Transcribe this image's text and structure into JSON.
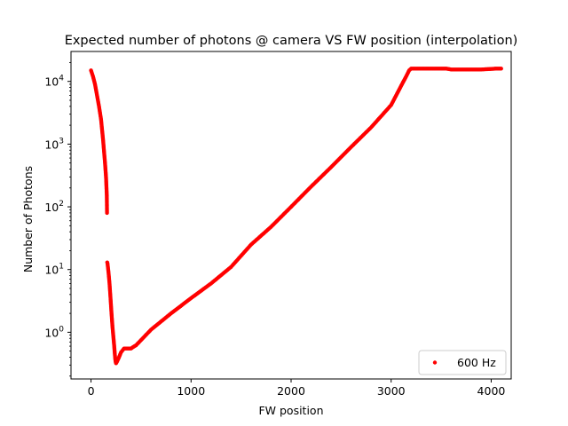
{
  "chart_data": {
    "type": "scatter",
    "title": "Expected number of photons @ camera VS FW position (interpolation)",
    "xlabel": "FW position",
    "ylabel": "Number of Photons",
    "xlim": [
      -200,
      4200
    ],
    "ylim": [
      0.18,
      30000
    ],
    "yscale": "log",
    "x_ticks": [
      0,
      1000,
      2000,
      3000,
      4000
    ],
    "x_tick_labels": [
      "0",
      "1000",
      "2000",
      "3000",
      "4000"
    ],
    "y_ticks": [
      1,
      10,
      100,
      1000,
      10000
    ],
    "y_tick_labels": [
      {
        "base": "10",
        "exp": "0"
      },
      {
        "base": "10",
        "exp": "1"
      },
      {
        "base": "10",
        "exp": "2"
      },
      {
        "base": "10",
        "exp": "3"
      },
      {
        "base": "10",
        "exp": "4"
      }
    ],
    "grid": false,
    "legend": {
      "position": "bottom-right"
    },
    "series": [
      {
        "name": "600 Hz",
        "color": "#ff0000",
        "x": [
          0,
          20,
          40,
          60,
          80,
          100,
          120,
          140,
          150,
          158,
          160,
          162,
          165,
          175,
          185,
          195,
          205,
          215,
          225,
          232,
          238,
          242,
          246,
          250,
          260,
          280,
          300,
          330,
          350,
          380,
          400,
          420,
          450,
          500,
          600,
          800,
          1000,
          1200,
          1400,
          1600,
          1800,
          2000,
          2200,
          2400,
          2600,
          2800,
          3000,
          3100,
          3150,
          3180,
          3200,
          3300,
          3400,
          3500,
          3550,
          3600,
          3700,
          3800,
          3900,
          4000,
          4050,
          4100
        ],
        "y": [
          15000,
          12000,
          9000,
          6000,
          4000,
          2500,
          1200,
          500,
          300,
          150,
          80,
          13,
          12.5,
          9,
          6,
          3.5,
          2,
          1.2,
          0.8,
          0.6,
          0.45,
          0.38,
          0.34,
          0.32,
          0.34,
          0.4,
          0.48,
          0.55,
          0.55,
          0.55,
          0.55,
          0.58,
          0.62,
          0.75,
          1.1,
          2.0,
          3.5,
          6.0,
          11,
          25,
          48,
          100,
          210,
          430,
          900,
          1850,
          4200,
          8500,
          12000,
          15000,
          16000,
          16000,
          16000,
          16000,
          16000,
          15500,
          15500,
          15500,
          15500,
          15800,
          16000,
          16000
        ]
      }
    ]
  }
}
